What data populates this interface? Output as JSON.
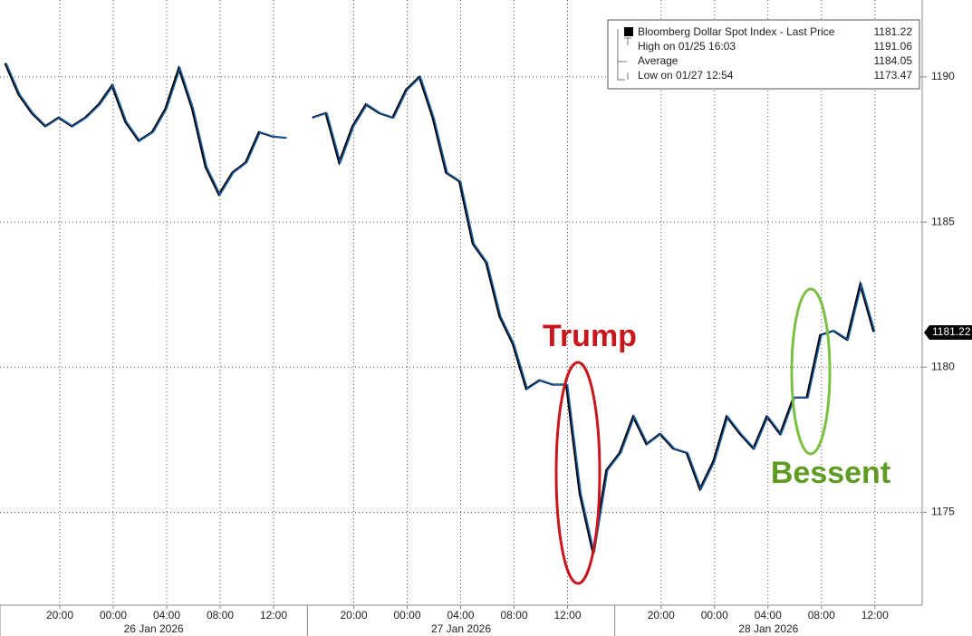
{
  "chart_data": {
    "type": "line",
    "categories": [
      null,
      null,
      null,
      null,
      "20:00",
      null,
      null,
      null,
      "00:00",
      null,
      null,
      null,
      "04:00",
      null,
      null,
      null,
      "08:00",
      null,
      null,
      null,
      "12:00",
      null,
      null,
      null,
      null,
      null,
      "20:00",
      null,
      null,
      null,
      "00:00",
      null,
      null,
      null,
      "04:00",
      null,
      null,
      null,
      "08:00",
      null,
      null,
      null,
      "12:00",
      null,
      null,
      null,
      null,
      null,
      null,
      "20:00",
      null,
      null,
      null,
      "00:00",
      null,
      null,
      null,
      "04:00",
      null,
      null,
      null,
      "08:00",
      null,
      null,
      null,
      "12:00"
    ],
    "x_groups": [
      "26 Jan 2026",
      "27 Jan 2026",
      "28 Jan 2026"
    ],
    "series": [
      {
        "name": "Bloomberg Dollar Spot Index - Last Price",
        "color": "#1a5fa8",
        "values": [
          1190.47,
          1189.4,
          1188.75,
          1188.3,
          1188.6,
          1188.3,
          1188.6,
          1189.05,
          1189.7,
          1188.45,
          1187.8,
          1188.1,
          1188.9,
          1190.3,
          1188.9,
          1186.9,
          1185.95,
          1186.7,
          1187.05,
          1188.1,
          1187.95,
          1187.9,
          null,
          1188.6,
          1188.75,
          1187.05,
          1188.3,
          1189.05,
          1188.75,
          1188.6,
          1189.55,
          1190.0,
          1188.6,
          1186.7,
          1186.4,
          1184.25,
          1183.6,
          1181.75,
          1180.8,
          1179.25,
          1179.55,
          1179.4,
          1179.4,
          1175.65,
          1173.6,
          1176.45,
          1177.05,
          1178.3,
          1177.35,
          1177.7,
          1177.2,
          1177.05,
          1175.8,
          1176.75,
          1178.3,
          1177.7,
          1177.2,
          1178.3,
          1177.7,
          1178.95,
          1178.95,
          1181.1,
          1181.25,
          1180.95,
          1182.85,
          1181.22
        ]
      }
    ],
    "ylim": [
      1171.8,
      1192.65
    ],
    "yticks": [
      1175,
      1180,
      1185,
      1190
    ],
    "grid": true,
    "legend": {
      "entries": [
        {
          "label": "Bloomberg Dollar Spot Index - Last Price",
          "value": 1181.22
        },
        {
          "label": "High on 01/25 16:03",
          "value": 1191.06
        },
        {
          "label": "Average",
          "value": 1184.05
        },
        {
          "label": "Low on 01/27 12:54",
          "value": 1173.47
        }
      ]
    },
    "annotations": [
      {
        "text": "Trump",
        "color": "#c8161d"
      },
      {
        "text": "Bessent",
        "color": "#5f9a22"
      }
    ]
  }
}
